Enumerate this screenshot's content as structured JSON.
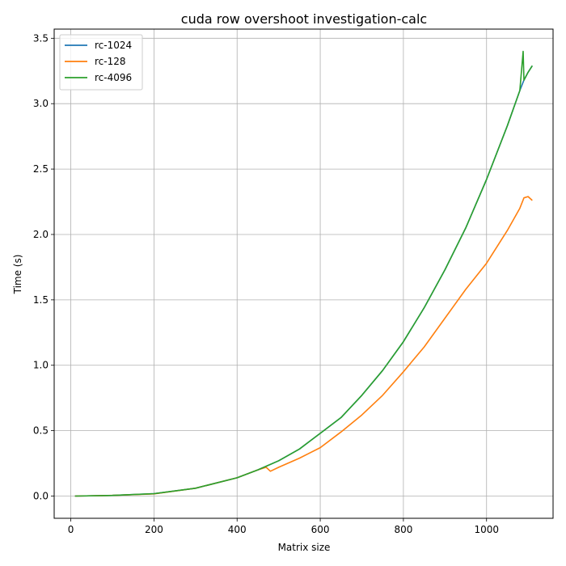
{
  "chart_data": {
    "type": "line",
    "title": "cuda row overshoot investigation-calc",
    "xlabel": "Matrix size",
    "ylabel": "Time (s)",
    "xlim": [
      -40,
      1160
    ],
    "ylim": [
      -0.17,
      3.57
    ],
    "xticks": [
      0,
      200,
      400,
      600,
      800,
      1000
    ],
    "yticks": [
      0.0,
      0.5,
      1.0,
      1.5,
      2.0,
      2.5,
      3.0,
      3.5
    ],
    "xtick_labels": [
      "0",
      "200",
      "400",
      "600",
      "800",
      "1000"
    ],
    "ytick_labels": [
      "0.0",
      "0.5",
      "1.0",
      "1.5",
      "2.0",
      "2.5",
      "3.0",
      "3.5"
    ],
    "grid": true,
    "legend_position": "top-left",
    "series": [
      {
        "name": "rc-1024",
        "color": "#1f77b4",
        "x": [
          10,
          100,
          200,
          300,
          400,
          450,
          500,
          550,
          600,
          650,
          700,
          750,
          800,
          850,
          900,
          950,
          1000,
          1050,
          1080,
          1090,
          1100,
          1110
        ],
        "y": [
          0.0,
          0.005,
          0.018,
          0.06,
          0.14,
          0.2,
          0.27,
          0.36,
          0.48,
          0.6,
          0.77,
          0.96,
          1.18,
          1.44,
          1.73,
          2.05,
          2.42,
          2.83,
          3.1,
          3.18,
          3.24,
          3.29
        ]
      },
      {
        "name": "rc-128",
        "color": "#ff7f0e",
        "x": [
          10,
          100,
          200,
          300,
          400,
          450,
          470,
          480,
          500,
          550,
          600,
          650,
          700,
          750,
          800,
          850,
          900,
          950,
          1000,
          1050,
          1080,
          1090,
          1100,
          1110
        ],
        "y": [
          0.0,
          0.005,
          0.017,
          0.06,
          0.14,
          0.2,
          0.22,
          0.19,
          0.22,
          0.29,
          0.37,
          0.49,
          0.62,
          0.77,
          0.95,
          1.14,
          1.36,
          1.58,
          1.78,
          2.03,
          2.2,
          2.28,
          2.29,
          2.26
        ]
      },
      {
        "name": "rc-4096",
        "color": "#2ca02c",
        "x": [
          10,
          100,
          200,
          300,
          400,
          450,
          500,
          550,
          600,
          650,
          700,
          750,
          800,
          850,
          900,
          950,
          1000,
          1050,
          1080,
          1088,
          1090,
          1100,
          1110
        ],
        "y": [
          0.0,
          0.005,
          0.018,
          0.06,
          0.14,
          0.2,
          0.27,
          0.36,
          0.48,
          0.6,
          0.77,
          0.96,
          1.18,
          1.44,
          1.73,
          2.05,
          2.42,
          2.83,
          3.1,
          3.4,
          3.18,
          3.24,
          3.29
        ]
      }
    ]
  }
}
